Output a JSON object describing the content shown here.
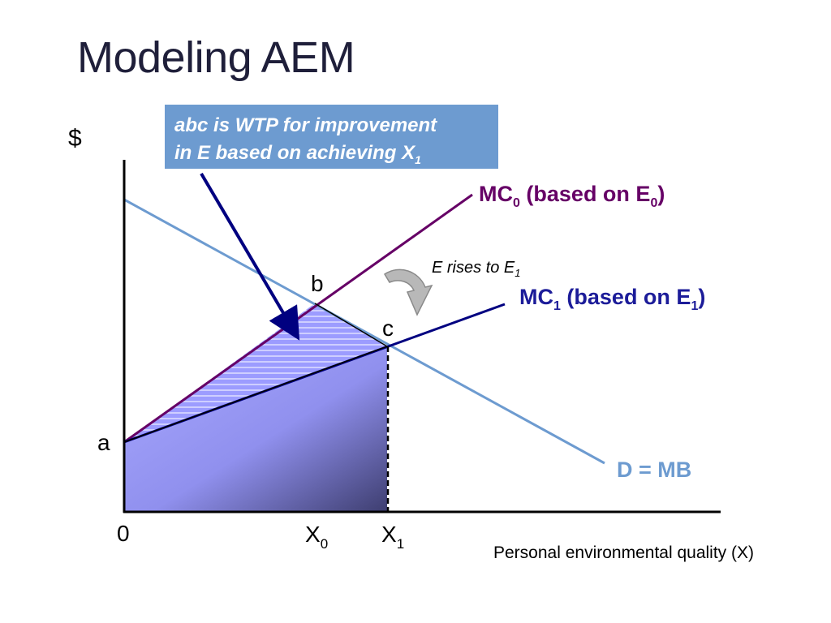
{
  "title": "Modeling AEM",
  "callout": {
    "line1": "abc is WTP for improvement",
    "line2_main": "in E based on achieving X",
    "line2_sub": "1"
  },
  "axes": {
    "y_label": "$",
    "origin_label": "0",
    "x_label": "Personal environmental quality (X)",
    "x0_main": "X",
    "x0_sub": "0",
    "x1_main": "X",
    "x1_sub": "1"
  },
  "points": {
    "a": "a",
    "b": "b",
    "c": "c"
  },
  "curves": {
    "mc0": {
      "prefix": "MC",
      "sub": "0",
      "text": " (based on E",
      "sub2": "0",
      "suffix": ")",
      "color": "#660066"
    },
    "mc1": {
      "prefix": "MC",
      "sub": "1",
      "text": " (based on E",
      "sub2": "1",
      "suffix": ")",
      "color": "#1c1c99"
    },
    "demand": {
      "label": "D = MB",
      "color": "#6d9bd0"
    }
  },
  "annotation": {
    "main": "E rises to E",
    "sub": "1"
  },
  "colors": {
    "shade": "#9c9cff",
    "shade_dark": "#4a4a80",
    "axis": "#000000",
    "arrow": "#000080",
    "title": "#1f1f3a"
  }
}
